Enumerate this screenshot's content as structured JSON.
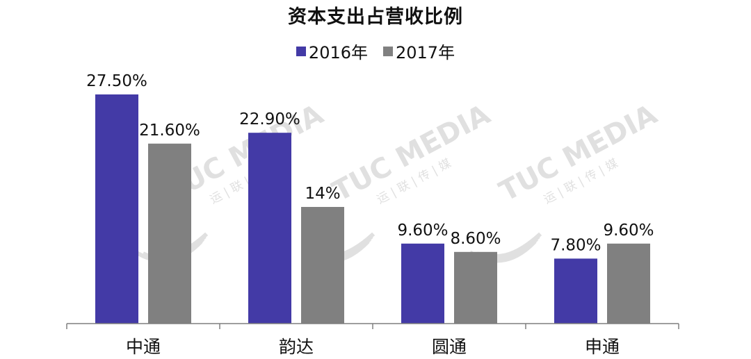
{
  "chart_data": {
    "type": "bar",
    "title": "资本支出占营收比例",
    "categories": [
      "中通",
      "韵达",
      "圆通",
      "申通"
    ],
    "series": [
      {
        "name": "2016年",
        "color": "#433aa6",
        "values": [
          27.5,
          22.9,
          9.6,
          7.8
        ],
        "labels": [
          "27.50%",
          "22.90%",
          "9.60%",
          "7.80%"
        ]
      },
      {
        "name": "2017年",
        "color": "#808080",
        "values": [
          21.6,
          14,
          8.6,
          9.6
        ],
        "labels": [
          "21.60%",
          "14%",
          "8.60%",
          "9.60%"
        ]
      }
    ],
    "ylim": [
      0,
      30
    ],
    "xlabel": "",
    "ylabel": "",
    "grid": false,
    "legend_position": "top-center"
  },
  "watermark": {
    "brand": "TUC MEDIA",
    "subtitle": "运 | 联 | 传 | 媒"
  }
}
